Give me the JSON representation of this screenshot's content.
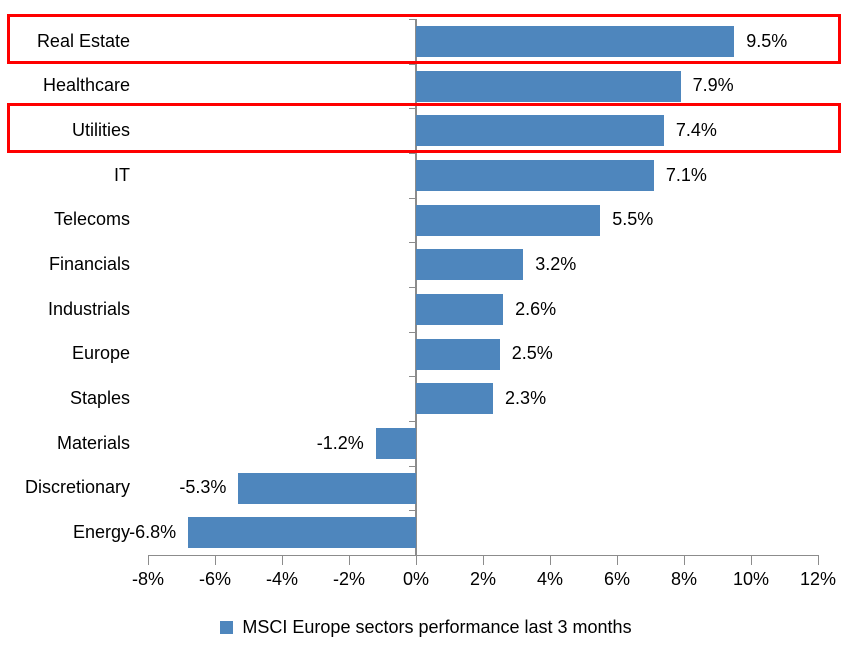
{
  "chart_data": {
    "type": "bar",
    "orientation": "horizontal",
    "categories": [
      "Real Estate",
      "Healthcare",
      "Utilities",
      "IT",
      "Telecoms",
      "Financials",
      "Industrials",
      "Europe",
      "Staples",
      "Materials",
      "Discretionary",
      "Energy"
    ],
    "values": [
      9.5,
      7.9,
      7.4,
      7.1,
      5.5,
      3.2,
      2.6,
      2.5,
      2.3,
      -1.2,
      -5.3,
      -6.8
    ],
    "data_labels": [
      "9.5%",
      "7.9%",
      "7.4%",
      "7.1%",
      "5.5%",
      "3.2%",
      "2.6%",
      "2.5%",
      "2.3%",
      "-1.2%",
      "-5.3%",
      "-6.8%"
    ],
    "xlim": [
      -8,
      12
    ],
    "x_tick_values": [
      -8,
      -6,
      -4,
      -2,
      0,
      2,
      4,
      6,
      8,
      10,
      12
    ],
    "x_tick_labels": [
      "-8%",
      "-6%",
      "-4%",
      "-2%",
      "0%",
      "2%",
      "4%",
      "6%",
      "8%",
      "10%",
      "12%"
    ],
    "grid": false,
    "legend": {
      "position": "bottom",
      "label": "MSCI Europe sectors performance last 3 months"
    },
    "highlighted_categories": [
      "Real Estate",
      "Utilities"
    ],
    "colors": {
      "bar": "#4e86bd",
      "axis": "#8c8c8c",
      "highlight_box": "#fe0000",
      "text": "#000000",
      "background": "#ffffff"
    }
  }
}
